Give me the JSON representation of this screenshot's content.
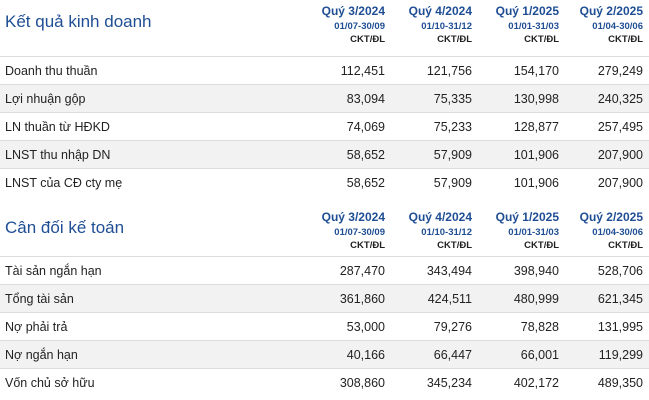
{
  "income": {
    "title": "Kết quả kinh doanh",
    "periods": [
      {
        "quarter": "Quý 3/2024",
        "range": "01/07-30/09",
        "unit": "CKT/ĐL"
      },
      {
        "quarter": "Quý 4/2024",
        "range": "01/10-31/12",
        "unit": "CKT/ĐL"
      },
      {
        "quarter": "Quý 1/2025",
        "range": "01/01-31/03",
        "unit": "CKT/ĐL"
      },
      {
        "quarter": "Quý 2/2025",
        "range": "01/04-30/06",
        "unit": "CKT/ĐL"
      }
    ],
    "rows": [
      {
        "label": "Doanh thu thuần",
        "values": [
          "112,451",
          "121,756",
          "154,170",
          "279,249"
        ]
      },
      {
        "label": "Lợi nhuận gộp",
        "values": [
          "83,094",
          "75,335",
          "130,998",
          "240,325"
        ]
      },
      {
        "label": "LN thuần từ HĐKD",
        "values": [
          "74,069",
          "75,233",
          "128,877",
          "257,495"
        ]
      },
      {
        "label": "LNST thu nhập DN",
        "values": [
          "58,652",
          "57,909",
          "101,906",
          "207,900"
        ]
      },
      {
        "label": "LNST của CĐ cty mẹ",
        "values": [
          "58,652",
          "57,909",
          "101,906",
          "207,900"
        ]
      }
    ]
  },
  "balance": {
    "title": "Cân đối kế toán",
    "periods": [
      {
        "quarter": "Quý 3/2024",
        "range": "01/07-30/09",
        "unit": "CKT/ĐL"
      },
      {
        "quarter": "Quý 4/2024",
        "range": "01/10-31/12",
        "unit": "CKT/ĐL"
      },
      {
        "quarter": "Quý 1/2025",
        "range": "01/01-31/03",
        "unit": "CKT/ĐL"
      },
      {
        "quarter": "Quý 2/2025",
        "range": "01/04-30/06",
        "unit": "CKT/ĐL"
      }
    ],
    "rows": [
      {
        "label": "Tài sản ngắn hạn",
        "values": [
          "287,470",
          "343,494",
          "398,940",
          "528,706"
        ]
      },
      {
        "label": "Tổng tài sản",
        "values": [
          "361,860",
          "424,511",
          "480,999",
          "621,345"
        ]
      },
      {
        "label": "Nợ phải trả",
        "values": [
          "53,000",
          "79,276",
          "78,828",
          "131,995"
        ]
      },
      {
        "label": "Nợ ngắn hạn",
        "values": [
          "40,166",
          "66,447",
          "66,001",
          "119,299"
        ]
      },
      {
        "label": "Vốn chủ sở hữu",
        "values": [
          "308,860",
          "345,234",
          "402,172",
          "489,350"
        ]
      }
    ]
  }
}
